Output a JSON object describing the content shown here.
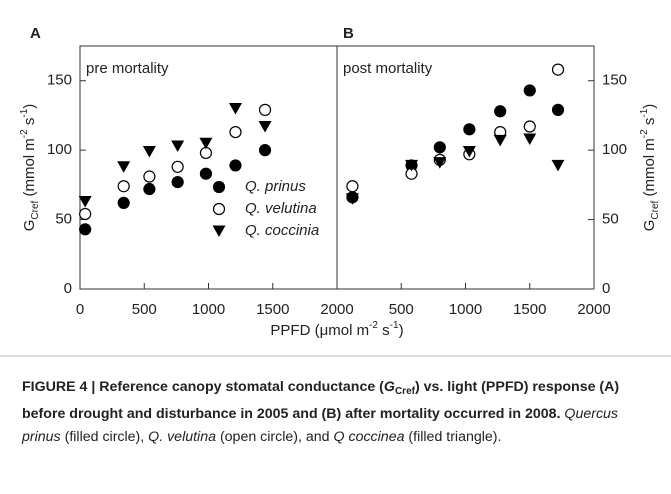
{
  "chart_data": [
    {
      "type": "scatter",
      "panel_label": "A",
      "title": "pre mortality",
      "x_label_parts": [
        "PPFD (",
        "μ",
        "mol m",
        "-2",
        " s",
        "-1",
        ")"
      ],
      "y_label_parts": [
        "G",
        "Cref",
        " (mmol m",
        "-2",
        " s",
        "-1",
        ")"
      ],
      "y_axis_side": "left",
      "xlim": [
        0,
        2000
      ],
      "xticks": [
        0,
        500,
        1000,
        1500,
        2000
      ],
      "ylim": [
        0,
        175
      ],
      "yticks": [
        0,
        50,
        100,
        150
      ],
      "legend": "lower right",
      "series": [
        {
          "name": "Q. prinus",
          "marker": "filled_circle",
          "color": "#000000",
          "x": [
            40,
            340,
            540,
            760,
            980,
            1210,
            1440
          ],
          "values": [
            43,
            62,
            72,
            77,
            83,
            89,
            100
          ]
        },
        {
          "name": "Q. velutina",
          "marker": "open_circle",
          "color": "#000000",
          "x": [
            40,
            340,
            540,
            760,
            980,
            1210,
            1440
          ],
          "values": [
            54,
            74,
            81,
            88,
            98,
            113,
            129
          ]
        },
        {
          "name": "Q. coccinia",
          "marker": "filled_triangle_down",
          "color": "#000000",
          "x": [
            40,
            340,
            540,
            760,
            980,
            1210,
            1440
          ],
          "values": [
            63,
            88,
            99,
            103,
            105,
            130,
            117
          ]
        }
      ]
    },
    {
      "type": "scatter",
      "panel_label": "B",
      "title": "post mortality",
      "y_label_parts": [
        "G",
        "Cref",
        " (mmol m",
        "-2",
        " s",
        "-1",
        ")"
      ],
      "y_axis_side": "right",
      "xlim": [
        0,
        2000
      ],
      "xticks": [
        500,
        1000,
        1500,
        2000
      ],
      "ylim": [
        0,
        175
      ],
      "yticks": [
        0,
        50,
        100,
        150
      ],
      "series": [
        {
          "marker": "filled_circle",
          "color": "#000000",
          "x": [
            120,
            580,
            800,
            1030,
            1270,
            1500,
            1720
          ],
          "values": [
            66,
            89,
            102,
            115,
            128,
            143,
            129
          ]
        },
        {
          "marker": "open_circle",
          "color": "#000000",
          "x": [
            120,
            580,
            800,
            1030,
            1270,
            1500,
            1720
          ],
          "values": [
            74,
            83,
            93,
            97,
            113,
            117,
            158
          ]
        },
        {
          "marker": "filled_triangle_down",
          "color": "#000000",
          "x": [
            120,
            580,
            800,
            1030,
            1270,
            1500,
            1720
          ],
          "values": [
            65,
            89,
            91,
            99,
            107,
            108,
            89
          ]
        }
      ]
    }
  ],
  "caption": [
    "FIGURE 4 | Reference canopy stomatal conductance (",
    "G",
    "Cref",
    ") vs. light (PPFD) response (A) before drought and disturbance in 2005 and (B) after mortality occurred in 2008.",
    " ",
    "Quercus prinus",
    " (filled circle), ",
    "Q. velutina",
    " (open circle), and ",
    "Q coccinea",
    " (filled triangle)."
  ]
}
